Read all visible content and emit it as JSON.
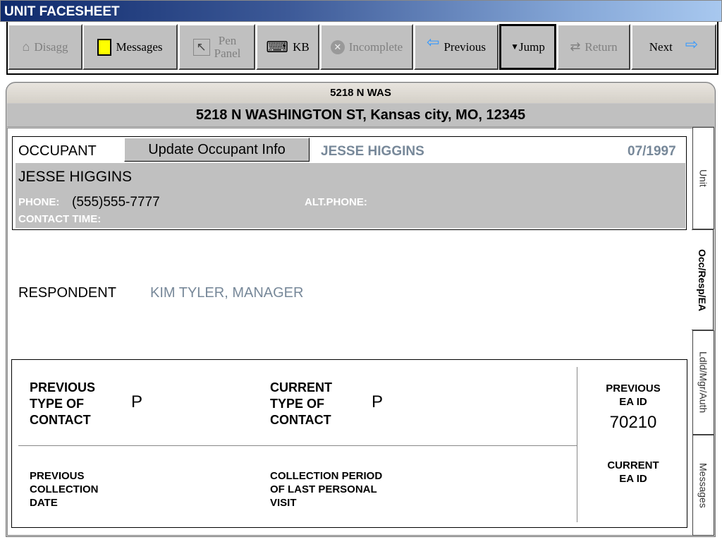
{
  "window": {
    "title": "UNIT FACESHEET"
  },
  "toolbar": {
    "disagg": "Disagg",
    "messages": "Messages",
    "pen_panel": "Pen\nPanel",
    "kb": "KB",
    "incomplete": "Incomplete",
    "previous": "Previous",
    "jump": "Jump",
    "return": "Return",
    "next": "Next"
  },
  "header": {
    "short_address": "5218 N WAS",
    "full_address": "5218 N WASHINGTON ST, Kansas city, MO, 12345"
  },
  "occupant": {
    "label": "OCCUPANT",
    "update_button": "Update Occupant Info",
    "name_header": "JESSE HIGGINS",
    "date": "07/1997",
    "name": "JESSE HIGGINS",
    "phone_label": "PHONE:",
    "phone": "(555)555-7777",
    "alt_phone_label": "ALT.PHONE:",
    "contact_time_label": "CONTACT TIME:"
  },
  "respondent": {
    "label": "RESPONDENT",
    "value": "KIM TYLER, MANAGER"
  },
  "contact": {
    "prev_type_label": "PREVIOUS\nTYPE OF\nCONTACT",
    "prev_type_value": "P",
    "curr_type_label": "CURRENT\nTYPE OF\nCONTACT",
    "curr_type_value": "P",
    "prev_date_label": "PREVIOUS\nCOLLECTION\nDATE",
    "period_label": "COLLECTION PERIOD\nOF LAST PERSONAL\nVISIT",
    "prev_ea_label": "PREVIOUS\nEA ID",
    "prev_ea_value": "70210",
    "curr_ea_label": "CURRENT\nEA ID"
  },
  "tabs": [
    {
      "label": "Unit"
    },
    {
      "label": "Occ/Resp/EA",
      "active": true
    },
    {
      "label": "Ldld/Mgr/Auth"
    },
    {
      "label": "Messages"
    }
  ]
}
